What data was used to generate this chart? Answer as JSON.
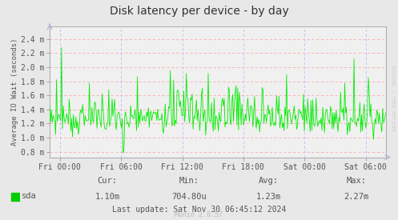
{
  "title": "Disk latency per device - by day",
  "ylabel": "Average IO Wait (seconds)",
  "background_color": "#e8e8e8",
  "plot_background": "#f0f0f0",
  "line_color": "#00ee00",
  "yticks": [
    0.0008,
    0.001,
    0.0012,
    0.0014,
    0.0016,
    0.0018,
    0.002,
    0.0022,
    0.0024
  ],
  "ytick_labels": [
    "0.8 m",
    "1.0 m",
    "1.2 m",
    "1.4 m",
    "1.6 m",
    "1.8 m",
    "2.0 m",
    "2.2 m",
    "2.4 m"
  ],
  "ylim_min": 0.00072,
  "ylim_max": 0.00258,
  "xtick_labels": [
    "Fri 00:00",
    "Fri 06:00",
    "Fri 12:00",
    "Fri 18:00",
    "Sat 00:00",
    "Sat 06:00"
  ],
  "legend_label": "sda",
  "legend_color": "#00cc00",
  "cur": "1.10m",
  "min_val": "704.80u",
  "avg": "1.23m",
  "max_val": "2.27m",
  "last_update": "Last update: Sat Nov 30 06:45:12 2024",
  "munin_version": "Munin 2.0.57",
  "watermark": "RRDTOOL / TOBI OETIKER"
}
